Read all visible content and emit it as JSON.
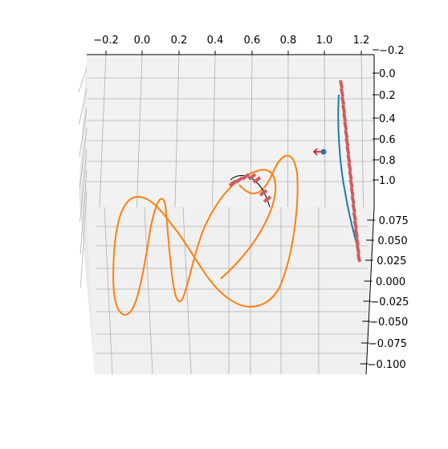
{
  "chart_data": {
    "type": "line",
    "projection": "3d",
    "grid": true,
    "pane_color": "#f2f2f2",
    "x_axis": {
      "ticks": [
        "−0.2",
        "0.0",
        "0.2",
        "0.4",
        "0.6",
        "0.8",
        "1.0",
        "1.2"
      ],
      "range": [
        -0.3,
        1.25
      ]
    },
    "y_axis": {
      "ticks": [
        "−0.2",
        "0.0",
        "0.2",
        "0.4",
        "0.6",
        "0.8",
        "1.0"
      ],
      "range": [
        -0.2,
        1.1
      ]
    },
    "z_axis": {
      "ticks": [
        "0.075",
        "0.050",
        "0.025",
        "0.000",
        "−0.025",
        "−0.050",
        "−0.075",
        "−0.100"
      ],
      "range": [
        -0.1,
        0.09
      ]
    },
    "series": [
      {
        "kind": "curve",
        "color": "#ff7f0e",
        "description": "figure-eight trajectory"
      },
      {
        "kind": "curve",
        "color": "#1f77b4"
      },
      {
        "kind": "quiver",
        "color": "#cd5c5c"
      },
      {
        "kind": "arc",
        "color": "#000000"
      },
      {
        "kind": "point",
        "color": "#1f77b4"
      },
      {
        "kind": "arrow",
        "color": "#e00000"
      }
    ]
  }
}
